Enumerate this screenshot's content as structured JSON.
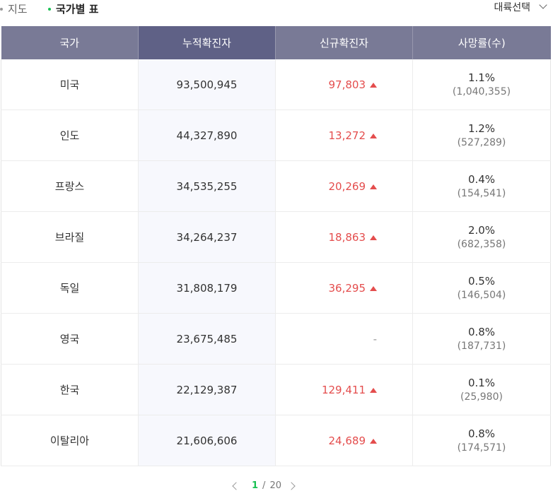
{
  "tabs": [
    {
      "label": "지도",
      "active": false
    },
    {
      "label": "국가별 표",
      "active": true
    }
  ],
  "continent_select": {
    "label": "대륙선택"
  },
  "table": {
    "headers": [
      "국가",
      "누적확진자",
      "신규확진자",
      "사망률(수)"
    ],
    "rows": [
      {
        "country": "미국",
        "cumulative": "93,500,945",
        "new": "97,803",
        "rate": "1.1%",
        "deaths": "(1,040,355)"
      },
      {
        "country": "인도",
        "cumulative": "44,327,890",
        "new": "13,272",
        "rate": "1.2%",
        "deaths": "(527,289)"
      },
      {
        "country": "프랑스",
        "cumulative": "34,535,255",
        "new": "20,269",
        "rate": "0.4%",
        "deaths": "(154,541)"
      },
      {
        "country": "브라질",
        "cumulative": "34,264,237",
        "new": "18,863",
        "rate": "2.0%",
        "deaths": "(682,358)"
      },
      {
        "country": "독일",
        "cumulative": "31,808,179",
        "new": "36,295",
        "rate": "0.5%",
        "deaths": "(146,504)"
      },
      {
        "country": "영국",
        "cumulative": "23,675,485",
        "new": "-",
        "rate": "0.8%",
        "deaths": "(187,731)"
      },
      {
        "country": "한국",
        "cumulative": "22,129,387",
        "new": "129,411",
        "rate": "0.1%",
        "deaths": "(25,980)"
      },
      {
        "country": "이탈리아",
        "cumulative": "21,606,606",
        "new": "24,689",
        "rate": "0.8%",
        "deaths": "(174,571)"
      }
    ]
  },
  "pager": {
    "current": "1",
    "separator": "/",
    "total": "20"
  },
  "colors": {
    "header": "#797a96",
    "header_highlight": "#5f6186",
    "increase": "#e44d4d",
    "active_dot": "#19c153"
  }
}
